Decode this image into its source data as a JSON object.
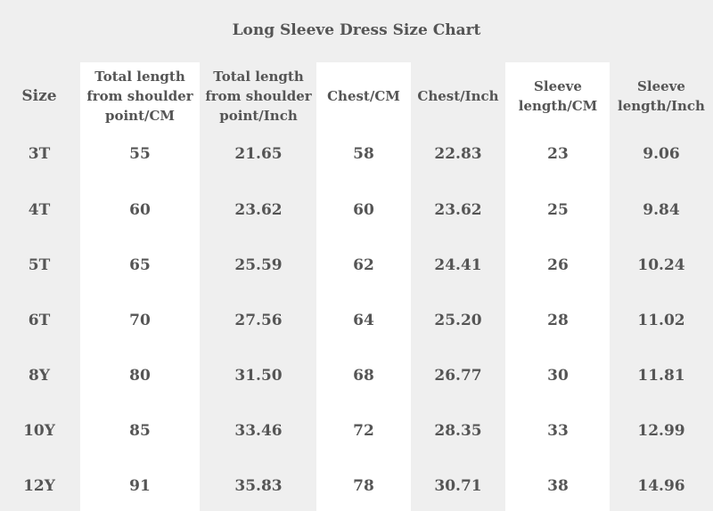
{
  "title": "Long Sleeve Dress Size Chart",
  "columns": [
    "Size",
    "Total length from shoulder point/CM",
    "Total length from shoulder point/Inch",
    "Chest/CM",
    "Chest/Inch",
    "Sleeve length/CM",
    "Sleeve length/Inch"
  ],
  "rows": [
    [
      "3T",
      "55",
      "21.65",
      "58",
      "22.83",
      "23",
      "9.06"
    ],
    [
      "4T",
      "60",
      "23.62",
      "60",
      "23.62",
      "25",
      "9.84"
    ],
    [
      "5T",
      "65",
      "25.59",
      "62",
      "24.41",
      "26",
      "10.24"
    ],
    [
      "6T",
      "70",
      "27.56",
      "64",
      "25.20",
      "28",
      "11.02"
    ],
    [
      "8Y",
      "80",
      "31.50",
      "68",
      "26.77",
      "30",
      "11.81"
    ],
    [
      "10Y",
      "85",
      "33.46",
      "72",
      "28.35",
      "33",
      "12.99"
    ],
    [
      "12Y",
      "91",
      "35.83",
      "78",
      "30.71",
      "38",
      "14.96"
    ]
  ]
}
